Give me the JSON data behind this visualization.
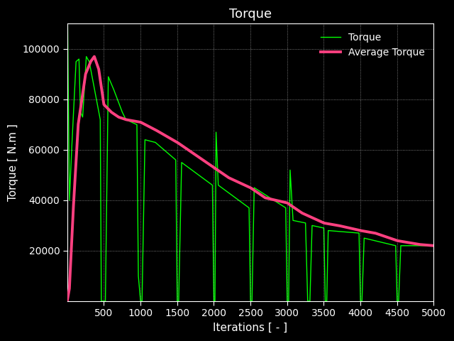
{
  "title": "Torque",
  "xlabel": "Iterations [ - ]",
  "ylabel": "Torque [ N.m ]",
  "background_color": "#000000",
  "axes_color": "#000000",
  "text_color": "#ffffff",
  "grid_color": "#ffffff",
  "torque_color": "#00ff00",
  "avg_torque_color": "#ff4080",
  "torque_linewidth": 1.0,
  "avg_torque_linewidth": 2.8,
  "xlim": [
    0,
    5000
  ],
  "ylim": [
    0,
    110000
  ],
  "xticks": [
    500,
    1000,
    1500,
    2000,
    2500,
    3000,
    3500,
    4000,
    4500,
    5000
  ],
  "yticks": [
    20000,
    40000,
    60000,
    80000,
    100000
  ],
  "legend_labels": [
    "Torque",
    "Average Torque"
  ],
  "title_fontsize": 13,
  "label_fontsize": 11,
  "tick_fontsize": 10,
  "avg_key_x": [
    0,
    30,
    80,
    150,
    250,
    320,
    370,
    430,
    500,
    600,
    700,
    800,
    1000,
    1200,
    1500,
    1800,
    2000,
    2200,
    2500,
    2700,
    3000,
    3200,
    3500,
    3700,
    4000,
    4200,
    4500,
    4800,
    5000
  ],
  "avg_key_y": [
    0,
    5000,
    35000,
    70000,
    90000,
    95000,
    97000,
    92000,
    78000,
    75000,
    73000,
    72000,
    71000,
    68000,
    63000,
    57000,
    53000,
    49000,
    45000,
    41000,
    39000,
    35000,
    31000,
    30000,
    28000,
    27000,
    24000,
    22500,
    22000
  ]
}
